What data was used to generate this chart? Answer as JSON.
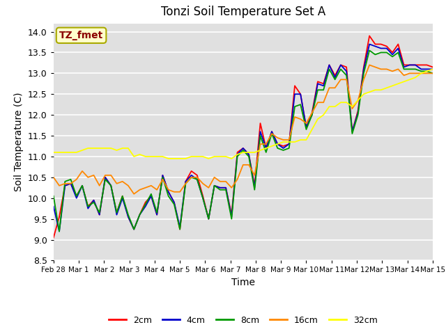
{
  "title": "Tonzi Soil Temperature Set A",
  "xlabel": "Time",
  "ylabel": "Soil Temperature (C)",
  "ylim": [
    8.5,
    14.2
  ],
  "annotation": "TZ_fmet",
  "annotation_color": "#8B0000",
  "annotation_bg": "#FFFFCC",
  "plot_bg": "#E0E0E0",
  "series_colors": [
    "#FF0000",
    "#0000CC",
    "#009900",
    "#FF8800",
    "#FFFF00"
  ],
  "series_labels": [
    "2cm",
    "4cm",
    "8cm",
    "16cm",
    "32cm"
  ],
  "x_tick_labels": [
    "Feb 28",
    "Mar 1",
    "Mar 2",
    "Mar 3",
    "Mar 4",
    "Mar 5",
    "Mar 6",
    "Mar 7",
    "Mar 8",
    "Mar 9",
    "Mar 10",
    "Mar 11",
    "Mar 12",
    "Mar 13",
    "Mar 14",
    "Mar 15"
  ],
  "yticks": [
    8.5,
    9.0,
    9.5,
    10.0,
    10.5,
    11.0,
    11.5,
    12.0,
    12.5,
    13.0,
    13.5,
    14.0
  ],
  "2cm": [
    9.05,
    9.55,
    10.3,
    10.35,
    10.05,
    10.3,
    9.8,
    9.95,
    9.6,
    10.5,
    10.3,
    9.65,
    10.05,
    9.55,
    9.25,
    9.6,
    9.9,
    10.05,
    9.6,
    10.55,
    10.15,
    9.9,
    9.25,
    10.4,
    10.65,
    10.55,
    10.05,
    9.5,
    10.3,
    10.25,
    10.25,
    9.6,
    11.1,
    11.2,
    11.05,
    10.3,
    11.8,
    11.2,
    11.6,
    11.3,
    11.25,
    11.3,
    12.7,
    12.5,
    11.7,
    12.05,
    12.8,
    12.75,
    13.2,
    12.95,
    13.2,
    13.15,
    11.6,
    12.1,
    13.15,
    13.9,
    13.7,
    13.7,
    13.65,
    13.5,
    13.7,
    13.2,
    13.2,
    13.2,
    13.2,
    13.2,
    13.15
  ],
  "4cm": [
    9.8,
    9.2,
    10.3,
    10.35,
    10.0,
    10.3,
    9.75,
    9.95,
    9.6,
    10.5,
    10.3,
    9.6,
    10.0,
    9.55,
    9.25,
    9.6,
    9.8,
    10.05,
    9.6,
    10.55,
    10.15,
    9.9,
    9.3,
    10.4,
    10.55,
    10.45,
    10.0,
    9.5,
    10.3,
    10.25,
    10.25,
    9.55,
    11.05,
    11.2,
    11.05,
    10.25,
    11.6,
    11.2,
    11.6,
    11.3,
    11.2,
    11.3,
    12.5,
    12.5,
    11.7,
    12.0,
    12.75,
    12.7,
    13.2,
    12.9,
    13.2,
    13.05,
    11.6,
    12.05,
    13.1,
    13.7,
    13.65,
    13.6,
    13.6,
    13.45,
    13.6,
    13.15,
    13.2,
    13.2,
    13.1,
    13.1,
    13.1
  ],
  "8cm": [
    10.05,
    9.2,
    10.4,
    10.45,
    10.05,
    10.3,
    9.8,
    9.9,
    9.65,
    10.45,
    10.3,
    9.65,
    10.05,
    9.6,
    9.25,
    9.6,
    9.85,
    10.1,
    9.65,
    10.5,
    10.05,
    9.85,
    9.25,
    10.35,
    10.5,
    10.45,
    10.0,
    9.5,
    10.3,
    10.2,
    10.2,
    9.5,
    11.0,
    11.15,
    11.0,
    10.2,
    11.5,
    11.1,
    11.55,
    11.2,
    11.15,
    11.2,
    12.2,
    12.25,
    11.65,
    12.0,
    12.6,
    12.6,
    13.1,
    12.85,
    13.1,
    12.95,
    11.55,
    12.0,
    13.0,
    13.55,
    13.45,
    13.5,
    13.5,
    13.4,
    13.5,
    13.1,
    13.1,
    13.1,
    13.05,
    13.05,
    13.0
  ],
  "16cm": [
    10.5,
    10.3,
    10.35,
    10.35,
    10.45,
    10.65,
    10.5,
    10.55,
    10.3,
    10.55,
    10.55,
    10.35,
    10.4,
    10.3,
    10.1,
    10.2,
    10.25,
    10.3,
    10.2,
    10.45,
    10.2,
    10.15,
    10.15,
    10.35,
    10.5,
    10.5,
    10.35,
    10.25,
    10.5,
    10.4,
    10.4,
    10.25,
    10.45,
    10.8,
    10.8,
    10.55,
    11.3,
    11.3,
    11.55,
    11.45,
    11.4,
    11.4,
    11.95,
    11.9,
    11.8,
    12.05,
    12.3,
    12.3,
    12.65,
    12.65,
    12.85,
    12.85,
    12.15,
    12.35,
    12.85,
    13.2,
    13.15,
    13.1,
    13.1,
    13.05,
    13.1,
    12.95,
    13.0,
    13.0,
    13.0,
    13.0,
    13.0
  ],
  "32cm": [
    11.1,
    11.1,
    11.1,
    11.1,
    11.1,
    11.15,
    11.2,
    11.2,
    11.2,
    11.2,
    11.2,
    11.15,
    11.2,
    11.2,
    11.0,
    11.05,
    11.0,
    11.0,
    11.0,
    11.0,
    10.95,
    10.95,
    10.95,
    10.95,
    11.0,
    11.0,
    11.0,
    10.95,
    11.0,
    11.0,
    11.0,
    10.95,
    11.05,
    11.1,
    11.1,
    11.1,
    11.15,
    11.2,
    11.25,
    11.3,
    11.35,
    11.35,
    11.35,
    11.4,
    11.4,
    11.65,
    11.9,
    12.0,
    12.2,
    12.2,
    12.3,
    12.3,
    12.2,
    12.35,
    12.5,
    12.55,
    12.6,
    12.6,
    12.65,
    12.7,
    12.75,
    12.8,
    12.85,
    12.9,
    13.0,
    13.05,
    13.1
  ]
}
